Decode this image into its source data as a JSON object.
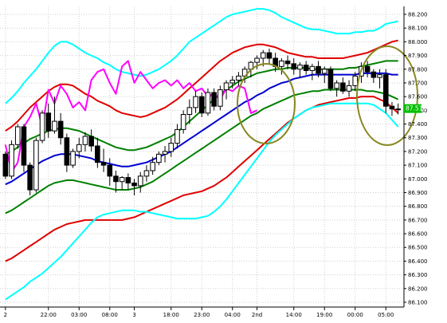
{
  "chart_data": {
    "type": "candlestick",
    "y_axis": {
      "min": 86.1,
      "max": 88.2,
      "step": 0.1,
      "side": "right",
      "tick_labels": [
        "88.200",
        "88.100",
        "88.000",
        "87.900",
        "87.800",
        "87.700",
        "87.600",
        "87.500",
        "87.400",
        "87.300",
        "87.200",
        "87.100",
        "87.000",
        "86.900",
        "86.800",
        "86.700",
        "86.600",
        "86.500",
        "86.400",
        "86.300",
        "86.200",
        "86.100"
      ]
    },
    "x_axis": {
      "n_bars": 65,
      "tick_labels": [
        {
          "label": "2",
          "bar": 0
        },
        {
          "label": "22:00",
          "bar": 7
        },
        {
          "label": "03:00",
          "bar": 12
        },
        {
          "label": "08:00",
          "bar": 17
        },
        {
          "label": "3",
          "bar": 21
        },
        {
          "label": "18:00",
          "bar": 27
        },
        {
          "label": "23:00",
          "bar": 32
        },
        {
          "label": "04:00",
          "bar": 37
        },
        {
          "label": "2nd",
          "bar": 41
        },
        {
          "label": "14:00",
          "bar": 47
        },
        {
          "label": "19:00",
          "bar": 52
        },
        {
          "label": "00:00",
          "bar": 57
        },
        {
          "label": "05:00",
          "bar": 62
        }
      ]
    },
    "current_price": "87.513",
    "grid": true,
    "legend": "none",
    "candles": [
      [
        87.18,
        87.2,
        87.0,
        87.02
      ],
      [
        87.02,
        87.28,
        87.0,
        87.25
      ],
      [
        87.25,
        87.4,
        87.22,
        87.38
      ],
      [
        87.38,
        87.4,
        87.05,
        87.1
      ],
      [
        87.1,
        87.12,
        86.88,
        86.92
      ],
      [
        86.92,
        87.3,
        86.9,
        87.28
      ],
      [
        87.28,
        87.5,
        87.26,
        87.48
      ],
      [
        87.48,
        87.55,
        87.3,
        87.35
      ],
      [
        87.35,
        87.6,
        87.33,
        87.42
      ],
      [
        87.42,
        87.48,
        87.25,
        87.3
      ],
      [
        87.3,
        87.33,
        87.05,
        87.1
      ],
      [
        87.1,
        87.22,
        87.08,
        87.2
      ],
      [
        87.2,
        87.3,
        87.15,
        87.25
      ],
      [
        87.25,
        87.34,
        87.2,
        87.31
      ],
      [
        87.31,
        87.36,
        87.2,
        87.24
      ],
      [
        87.24,
        87.3,
        87.08,
        87.12
      ],
      [
        87.12,
        87.22,
        87.05,
        87.1
      ],
      [
        87.1,
        87.15,
        86.95,
        87.02
      ],
      [
        87.02,
        87.06,
        86.9,
        86.98
      ],
      [
        86.98,
        87.02,
        86.92,
        87.01
      ],
      [
        87.01,
        87.04,
        86.92,
        86.97
      ],
      [
        86.97,
        87.0,
        86.88,
        86.95
      ],
      [
        86.95,
        87.05,
        86.9,
        87.02
      ],
      [
        87.02,
        87.1,
        86.98,
        87.06
      ],
      [
        87.06,
        87.16,
        87.03,
        87.12
      ],
      [
        87.12,
        87.2,
        87.1,
        87.18
      ],
      [
        87.18,
        87.24,
        87.12,
        87.2
      ],
      [
        87.2,
        87.3,
        87.16,
        87.26
      ],
      [
        87.26,
        87.4,
        87.22,
        87.36
      ],
      [
        87.36,
        87.5,
        87.33,
        87.47
      ],
      [
        87.47,
        87.58,
        87.4,
        87.52
      ],
      [
        87.52,
        87.64,
        87.48,
        87.6
      ],
      [
        87.6,
        87.63,
        87.45,
        87.48
      ],
      [
        87.48,
        87.66,
        87.46,
        87.63
      ],
      [
        87.63,
        87.66,
        87.5,
        87.53
      ],
      [
        87.53,
        87.68,
        87.5,
        87.65
      ],
      [
        87.65,
        87.72,
        87.58,
        87.7
      ],
      [
        87.7,
        87.75,
        87.66,
        87.72
      ],
      [
        87.72,
        87.78,
        87.68,
        87.75
      ],
      [
        87.75,
        87.82,
        87.7,
        87.8
      ],
      [
        87.8,
        87.86,
        87.74,
        87.85
      ],
      [
        87.85,
        87.9,
        87.8,
        87.88
      ],
      [
        87.88,
        87.94,
        87.82,
        87.92
      ],
      [
        87.92,
        87.95,
        87.84,
        87.88
      ],
      [
        87.88,
        87.92,
        87.78,
        87.82
      ],
      [
        87.82,
        87.88,
        87.76,
        87.86
      ],
      [
        87.86,
        87.9,
        87.8,
        87.84
      ],
      [
        87.84,
        87.88,
        87.76,
        87.8
      ],
      [
        87.8,
        87.85,
        87.74,
        87.83
      ],
      [
        87.83,
        87.86,
        87.76,
        87.79
      ],
      [
        87.79,
        87.84,
        87.72,
        87.82
      ],
      [
        87.82,
        87.86,
        87.74,
        87.77
      ],
      [
        87.77,
        87.82,
        87.7,
        87.8
      ],
      [
        87.8,
        87.82,
        87.64,
        87.66
      ],
      [
        87.66,
        87.72,
        87.6,
        87.7
      ],
      [
        87.7,
        87.74,
        87.62,
        87.64
      ],
      [
        87.64,
        87.72,
        87.6,
        87.68
      ],
      [
        87.68,
        87.78,
        87.64,
        87.75
      ],
      [
        87.75,
        87.85,
        87.7,
        87.82
      ],
      [
        87.82,
        87.86,
        87.74,
        87.78
      ],
      [
        87.78,
        87.8,
        87.7,
        87.74
      ],
      [
        87.74,
        87.8,
        87.66,
        87.76
      ],
      [
        87.76,
        87.8,
        87.48,
        87.53
      ],
      [
        87.53,
        87.56,
        87.46,
        87.51
      ],
      [
        87.51,
        87.55,
        87.47,
        87.51
      ]
    ],
    "series": [
      {
        "color": "#00ffff",
        "width": 2,
        "start_bar": 0,
        "values": [
          87.55,
          87.59,
          87.64,
          87.7,
          87.75,
          87.8,
          87.86,
          87.92,
          87.97,
          88.0,
          88.0,
          87.98,
          87.95,
          87.92,
          87.9,
          87.88,
          87.85,
          87.83,
          87.8,
          87.78,
          87.77,
          87.76,
          87.75,
          87.76,
          87.78,
          87.8,
          87.83,
          87.86,
          87.9,
          87.95,
          88.0,
          88.03,
          88.06,
          88.09,
          88.12,
          88.15,
          88.18,
          88.2,
          88.21,
          88.22,
          88.23,
          88.24,
          88.24,
          88.23,
          88.21,
          88.18,
          88.16,
          88.14,
          88.12,
          88.1,
          88.09,
          88.09,
          88.08,
          88.07,
          88.06,
          88.06,
          88.06,
          88.07,
          88.07,
          88.08,
          88.08,
          88.1,
          88.13,
          88.14,
          88.15
        ]
      },
      {
        "color": "#e00000",
        "width": 2,
        "start_bar": 0,
        "values": [
          87.35,
          87.38,
          87.42,
          87.47,
          87.52,
          87.56,
          87.6,
          87.64,
          87.67,
          87.69,
          87.69,
          87.68,
          87.65,
          87.62,
          87.6,
          87.57,
          87.55,
          87.53,
          87.5,
          87.48,
          87.47,
          87.46,
          87.45,
          87.46,
          87.48,
          87.5,
          87.52,
          87.55,
          87.58,
          87.62,
          87.66,
          87.7,
          87.74,
          87.78,
          87.82,
          87.86,
          87.89,
          87.92,
          87.94,
          87.96,
          87.97,
          87.98,
          87.98,
          87.97,
          87.96,
          87.94,
          87.92,
          87.91,
          87.9,
          87.89,
          87.89,
          87.88,
          87.88,
          87.88,
          87.88,
          87.88,
          87.89,
          87.9,
          87.91,
          87.92,
          87.94,
          87.96,
          87.98,
          88.0,
          88.01
        ]
      },
      {
        "color": "#008000",
        "width": 2,
        "start_bar": 0,
        "values": [
          87.18,
          87.2,
          87.23,
          87.26,
          87.29,
          87.31,
          87.33,
          87.35,
          87.36,
          87.37,
          87.37,
          87.36,
          87.35,
          87.33,
          87.31,
          87.29,
          87.27,
          87.25,
          87.23,
          87.22,
          87.21,
          87.21,
          87.22,
          87.23,
          87.25,
          87.27,
          87.29,
          87.31,
          87.34,
          87.38,
          87.42,
          87.46,
          87.5,
          87.54,
          87.58,
          87.62,
          87.65,
          87.68,
          87.71,
          87.73,
          87.75,
          87.77,
          87.78,
          87.79,
          87.8,
          87.8,
          87.81,
          87.81,
          87.81,
          87.81,
          87.8,
          87.8,
          87.8,
          87.8,
          87.8,
          87.8,
          87.81,
          87.81,
          87.82,
          87.83,
          87.84,
          87.85,
          87.86,
          87.86,
          87.86
        ]
      },
      {
        "color": "#0000d0",
        "width": 2,
        "start_bar": 0,
        "values": [
          86.96,
          86.98,
          87.01,
          87.04,
          87.07,
          87.1,
          87.13,
          87.15,
          87.17,
          87.18,
          87.18,
          87.18,
          87.17,
          87.16,
          87.15,
          87.13,
          87.12,
          87.11,
          87.1,
          87.09,
          87.09,
          87.1,
          87.11,
          87.12,
          87.14,
          87.16,
          87.18,
          87.2,
          87.23,
          87.26,
          87.29,
          87.32,
          87.35,
          87.38,
          87.41,
          87.44,
          87.47,
          87.5,
          87.53,
          87.56,
          87.58,
          87.61,
          87.63,
          87.66,
          87.68,
          87.7,
          87.71,
          87.73,
          87.74,
          87.75,
          87.76,
          87.76,
          87.76,
          87.76,
          87.76,
          87.76,
          87.76,
          87.76,
          87.77,
          87.77,
          87.77,
          87.77,
          87.77,
          87.76,
          87.76
        ]
      },
      {
        "color": "#008000",
        "width": 2,
        "start_bar": 0,
        "values": [
          86.75,
          86.77,
          86.8,
          86.83,
          86.86,
          86.89,
          86.92,
          86.95,
          86.97,
          86.98,
          86.99,
          86.99,
          86.98,
          86.97,
          86.96,
          86.95,
          86.94,
          86.93,
          86.92,
          86.92,
          86.92,
          86.93,
          86.94,
          86.96,
          86.98,
          87.01,
          87.04,
          87.07,
          87.1,
          87.13,
          87.16,
          87.19,
          87.22,
          87.25,
          87.28,
          87.31,
          87.34,
          87.37,
          87.4,
          87.43,
          87.46,
          87.48,
          87.51,
          87.53,
          87.55,
          87.57,
          87.59,
          87.61,
          87.62,
          87.63,
          87.64,
          87.64,
          87.65,
          87.65,
          87.65,
          87.65,
          87.65,
          87.65,
          87.65,
          87.64,
          87.64,
          87.63,
          87.62,
          87.6,
          87.58
        ]
      },
      {
        "color": "#e00000",
        "width": 2,
        "start_bar": 0,
        "values": [
          86.4,
          86.42,
          86.45,
          86.48,
          86.51,
          86.54,
          86.57,
          86.6,
          86.63,
          86.65,
          86.67,
          86.68,
          86.69,
          86.7,
          86.7,
          86.7,
          86.7,
          86.7,
          86.7,
          86.7,
          86.71,
          86.72,
          86.74,
          86.76,
          86.78,
          86.8,
          86.82,
          86.84,
          86.86,
          86.88,
          86.89,
          86.9,
          86.91,
          86.93,
          86.95,
          86.98,
          87.01,
          87.05,
          87.09,
          87.13,
          87.17,
          87.21,
          87.25,
          87.29,
          87.33,
          87.37,
          87.41,
          87.44,
          87.47,
          87.5,
          87.52,
          87.54,
          87.55,
          87.56,
          87.57,
          87.58,
          87.59,
          87.59,
          87.6,
          87.6,
          87.6,
          87.58,
          87.56,
          87.52,
          87.48
        ]
      },
      {
        "color": "#00ffff",
        "width": 2,
        "start_bar": 0,
        "values": [
          86.12,
          86.15,
          86.18,
          86.21,
          86.25,
          86.28,
          86.31,
          86.35,
          86.39,
          86.43,
          86.48,
          86.53,
          86.58,
          86.63,
          86.68,
          86.72,
          86.74,
          86.75,
          86.76,
          86.77,
          86.77,
          86.77,
          86.76,
          86.76,
          86.75,
          86.74,
          86.73,
          86.72,
          86.71,
          86.71,
          86.71,
          86.71,
          86.72,
          86.73,
          86.76,
          86.8,
          86.85,
          86.91,
          86.97,
          87.03,
          87.09,
          87.15,
          87.21,
          87.27,
          87.32,
          87.36,
          87.4,
          87.44,
          87.47,
          87.5,
          87.52,
          87.53,
          87.54,
          87.55,
          87.55,
          87.55,
          87.55,
          87.55,
          87.55,
          87.55,
          87.54,
          87.51,
          87.48,
          87.43,
          87.38
        ]
      },
      {
        "color": "#ff00ff",
        "width": 2,
        "start_bar": 0,
        "values": [
          87.25,
          87.05,
          87.12,
          87.38,
          87.45,
          87.55,
          87.38,
          87.65,
          87.55,
          87.68,
          87.62,
          87.52,
          87.56,
          87.5,
          87.72,
          87.78,
          87.8,
          87.7,
          87.62,
          87.82,
          87.86,
          87.7,
          87.78,
          87.72,
          87.66,
          87.7,
          87.72,
          87.68,
          87.72,
          87.66,
          87.7,
          87.64,
          87.66,
          87.6,
          87.62,
          87.58,
          87.66,
          87.64,
          87.68,
          87.66,
          87.48,
          87.5
        ]
      }
    ]
  },
  "annotations": {
    "ellipse_color": "#888822"
  }
}
